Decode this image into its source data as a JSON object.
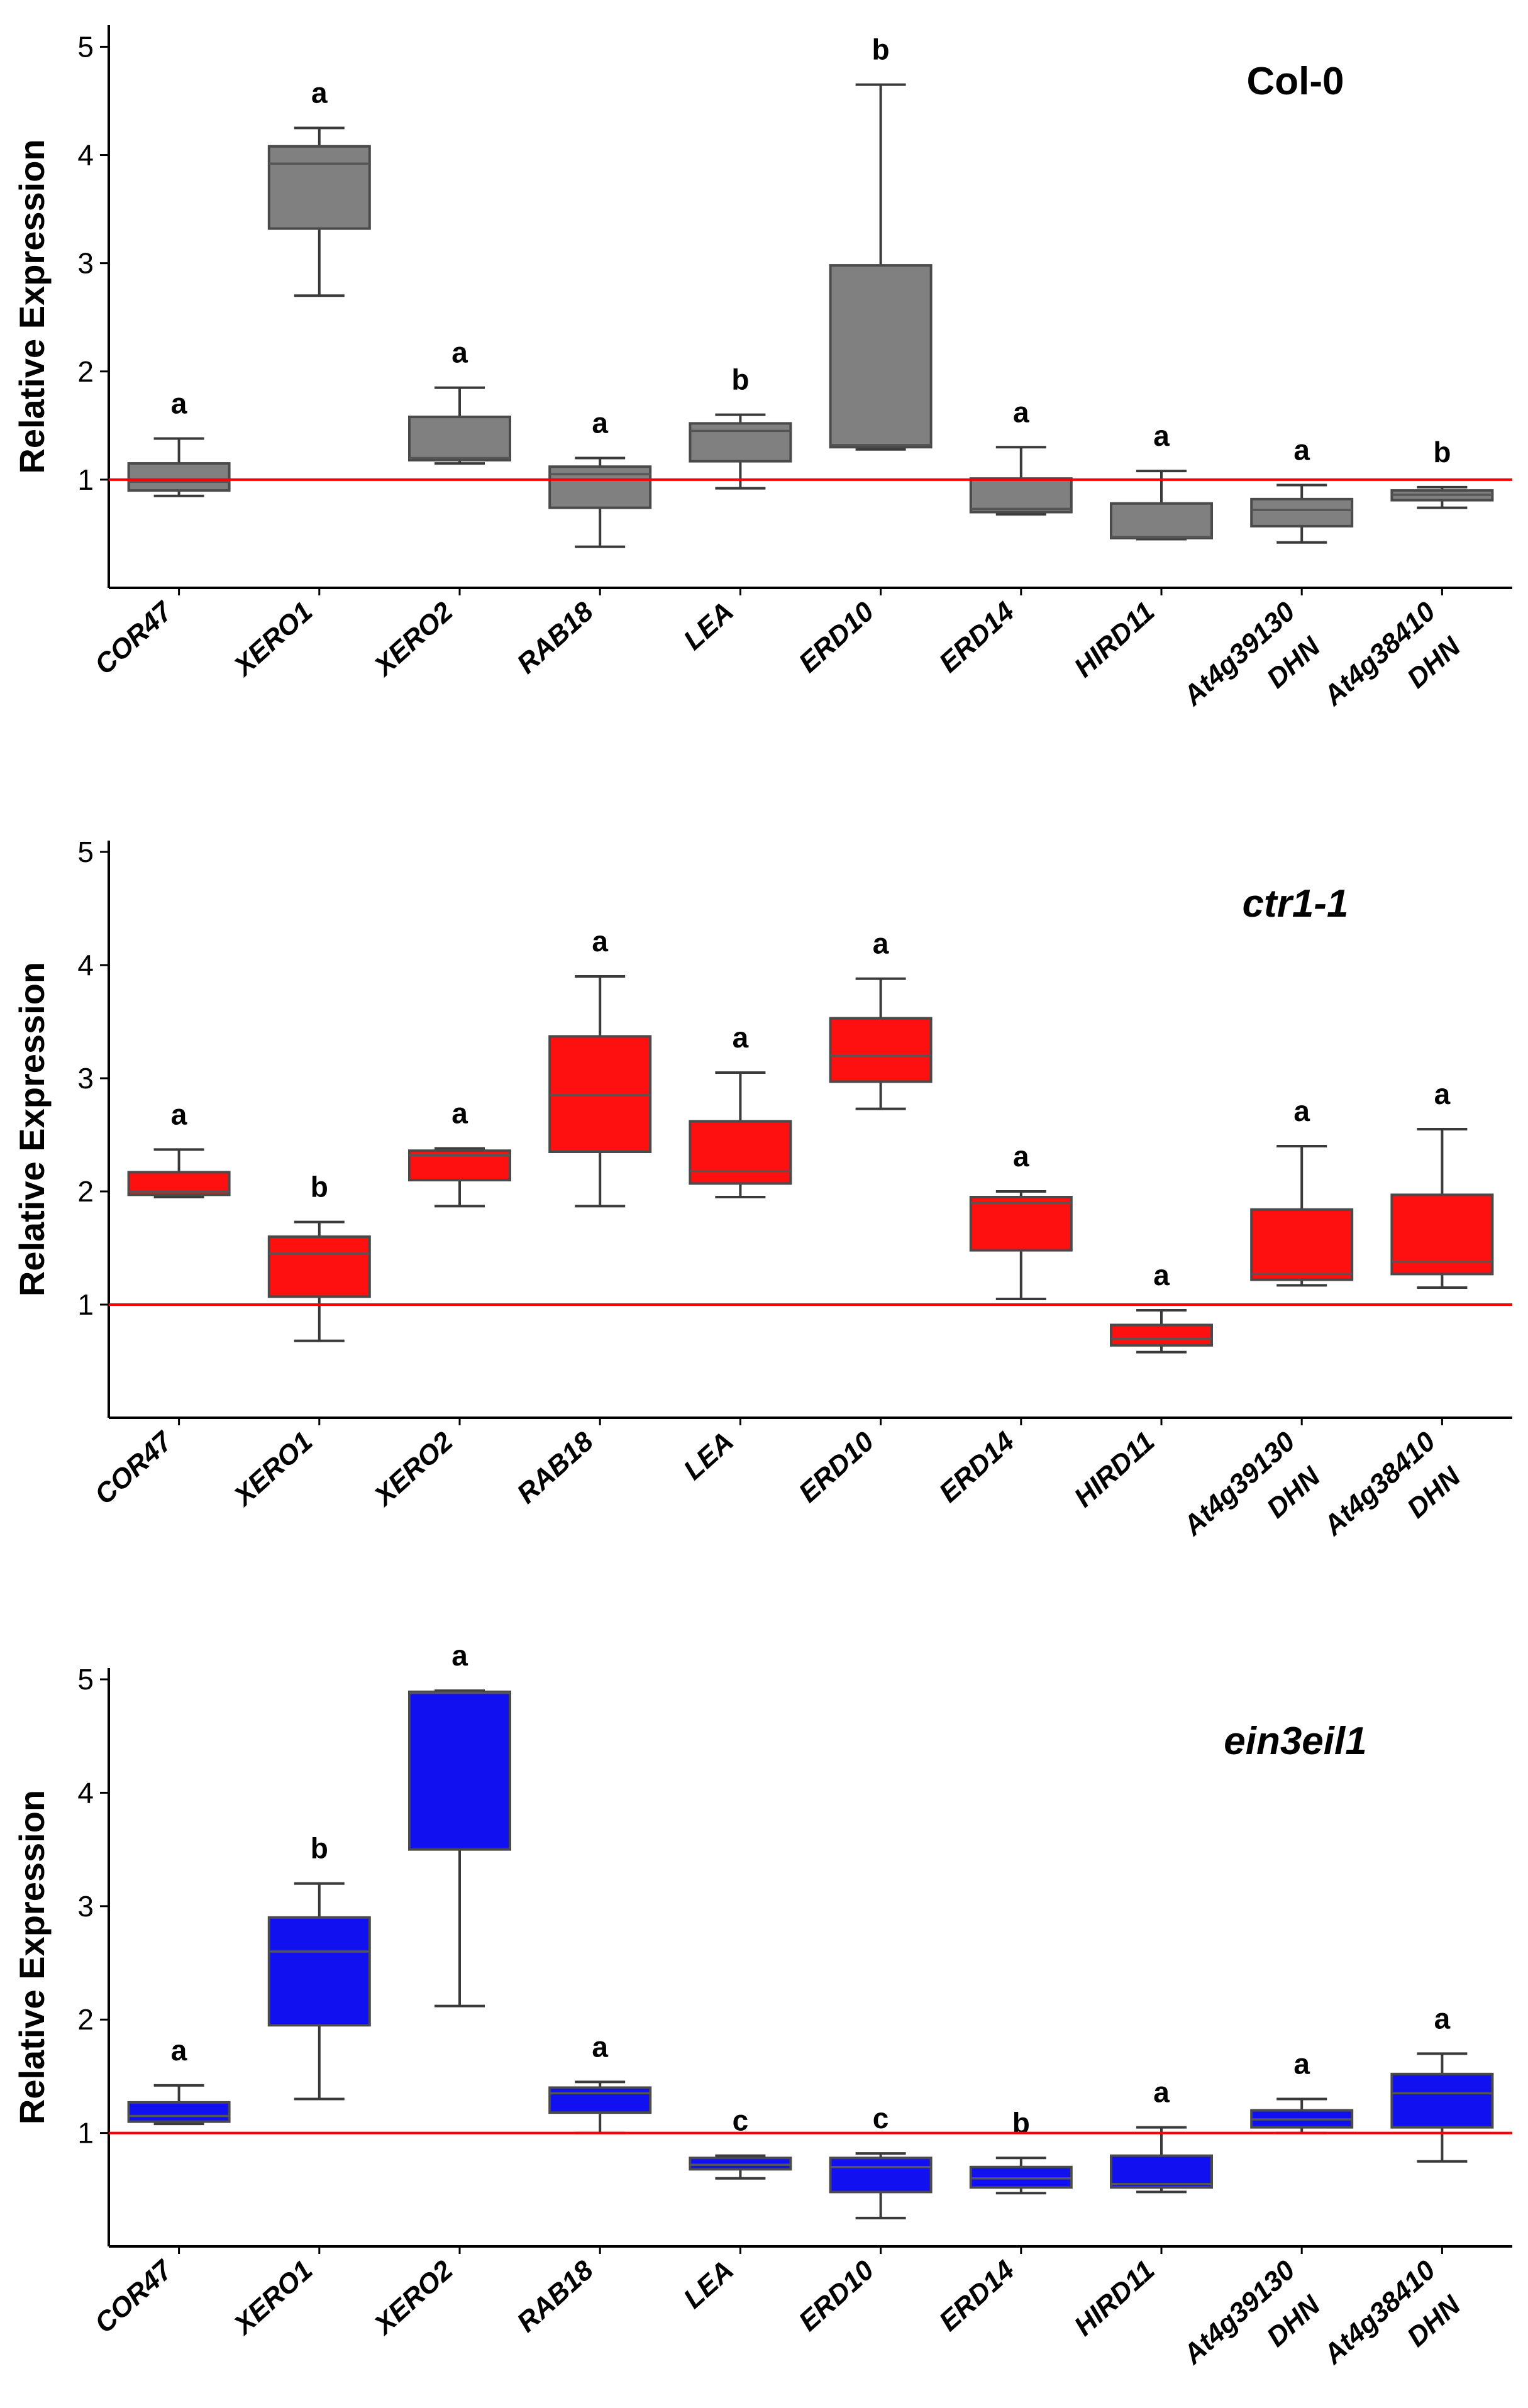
{
  "chart_data": [
    {
      "type": "box",
      "title": "Col-0",
      "title_italic": false,
      "ylabel": "Relative Expression",
      "ylim": [
        0,
        5.2
      ],
      "yticks": [
        1,
        2,
        3,
        4,
        5
      ],
      "reference_line": 1,
      "box_color": "#808080",
      "reference_color": "#ff0000",
      "categories": [
        [
          "COR47"
        ],
        [
          "XERO1"
        ],
        [
          "XERO2"
        ],
        [
          "RAB18"
        ],
        [
          "LEA"
        ],
        [
          "ERD10"
        ],
        [
          "ERD14"
        ],
        [
          "HIRD11"
        ],
        [
          "At4g39130",
          "DHN"
        ],
        [
          "At4g38410",
          "DHN"
        ]
      ],
      "boxes": [
        {
          "min": 0.85,
          "q1": 0.9,
          "median": 0.98,
          "q3": 1.15,
          "max": 1.38
        },
        {
          "min": 2.7,
          "q1": 3.32,
          "median": 3.92,
          "q3": 4.08,
          "max": 4.25
        },
        {
          "min": 1.15,
          "q1": 1.18,
          "median": 1.2,
          "q3": 1.58,
          "max": 1.85
        },
        {
          "min": 0.38,
          "q1": 0.74,
          "median": 1.05,
          "q3": 1.12,
          "max": 1.2
        },
        {
          "min": 0.92,
          "q1": 1.17,
          "median": 1.45,
          "q3": 1.52,
          "max": 1.6
        },
        {
          "min": 1.28,
          "q1": 1.3,
          "median": 1.32,
          "q3": 2.98,
          "max": 4.65
        },
        {
          "min": 0.68,
          "q1": 0.7,
          "median": 0.73,
          "q3": 1.01,
          "max": 1.3
        },
        {
          "min": 0.45,
          "q1": 0.46,
          "median": 0.47,
          "q3": 0.78,
          "max": 1.08
        },
        {
          "min": 0.42,
          "q1": 0.57,
          "median": 0.72,
          "q3": 0.82,
          "max": 0.95
        },
        {
          "min": 0.74,
          "q1": 0.81,
          "median": 0.86,
          "q3": 0.9,
          "max": 0.93
        }
      ],
      "letters": [
        "a",
        "a",
        "a",
        "a",
        "b",
        "b",
        "a",
        "a",
        "a",
        "b"
      ]
    },
    {
      "type": "box",
      "title": "ctr1-1",
      "title_italic": true,
      "ylabel": "Relative Expression",
      "ylim": [
        0,
        5.1
      ],
      "yticks": [
        1,
        2,
        3,
        4,
        5
      ],
      "reference_line": 1,
      "box_color": "#ff1010",
      "reference_color": "#ff0000",
      "categories": [
        [
          "COR47"
        ],
        [
          "XERO1"
        ],
        [
          "XERO2"
        ],
        [
          "RAB18"
        ],
        [
          "LEA"
        ],
        [
          "ERD10"
        ],
        [
          "ERD14"
        ],
        [
          "HIRD11"
        ],
        [
          "At4g39130",
          "DHN"
        ],
        [
          "At4g38410",
          "DHN"
        ]
      ],
      "boxes": [
        {
          "min": 1.95,
          "q1": 1.97,
          "median": 2.0,
          "q3": 2.17,
          "max": 2.37
        },
        {
          "min": 0.68,
          "q1": 1.07,
          "median": 1.45,
          "q3": 1.6,
          "max": 1.73
        },
        {
          "min": 1.87,
          "q1": 2.1,
          "median": 2.32,
          "q3": 2.36,
          "max": 2.38
        },
        {
          "min": 1.87,
          "q1": 2.35,
          "median": 2.85,
          "q3": 3.37,
          "max": 3.9
        },
        {
          "min": 1.95,
          "q1": 2.07,
          "median": 2.18,
          "q3": 2.62,
          "max": 3.05
        },
        {
          "min": 2.73,
          "q1": 2.97,
          "median": 3.2,
          "q3": 3.53,
          "max": 3.88
        },
        {
          "min": 1.05,
          "q1": 1.48,
          "median": 1.9,
          "q3": 1.95,
          "max": 2.0
        },
        {
          "min": 0.58,
          "q1": 0.64,
          "median": 0.7,
          "q3": 0.82,
          "max": 0.95
        },
        {
          "min": 1.17,
          "q1": 1.22,
          "median": 1.27,
          "q3": 1.84,
          "max": 2.4
        },
        {
          "min": 1.15,
          "q1": 1.27,
          "median": 1.38,
          "q3": 1.97,
          "max": 2.55
        }
      ],
      "letters": [
        "a",
        "b",
        "a",
        "a",
        "a",
        "a",
        "a",
        "a",
        "a",
        "a"
      ]
    },
    {
      "type": "box",
      "title": "ein3eil1",
      "title_italic": true,
      "ylabel": "Relative Expression",
      "ylim": [
        0,
        5.1
      ],
      "yticks": [
        1,
        2,
        3,
        4,
        5
      ],
      "reference_line": 1,
      "box_color": "#1010f0",
      "reference_color": "#ff0000",
      "categories": [
        [
          "COR47"
        ],
        [
          "XERO1"
        ],
        [
          "XERO2"
        ],
        [
          "RAB18"
        ],
        [
          "LEA"
        ],
        [
          "ERD10"
        ],
        [
          "ERD14"
        ],
        [
          "HIRD11"
        ],
        [
          "At4g39130",
          "DHN"
        ],
        [
          "At4g38410",
          "DHN"
        ]
      ],
      "boxes": [
        {
          "min": 1.08,
          "q1": 1.1,
          "median": 1.15,
          "q3": 1.27,
          "max": 1.42
        },
        {
          "min": 1.3,
          "q1": 1.95,
          "median": 2.6,
          "q3": 2.9,
          "max": 3.2
        },
        {
          "min": 2.12,
          "q1": 3.5,
          "median": 4.88,
          "q3": 4.89,
          "max": 4.9
        },
        {
          "min": 1.0,
          "q1": 1.18,
          "median": 1.35,
          "q3": 1.4,
          "max": 1.45
        },
        {
          "min": 0.6,
          "q1": 0.68,
          "median": 0.72,
          "q3": 0.78,
          "max": 0.8
        },
        {
          "min": 0.25,
          "q1": 0.48,
          "median": 0.7,
          "q3": 0.78,
          "max": 0.82
        },
        {
          "min": 0.47,
          "q1": 0.52,
          "median": 0.6,
          "q3": 0.7,
          "max": 0.78
        },
        {
          "min": 0.48,
          "q1": 0.52,
          "median": 0.55,
          "q3": 0.8,
          "max": 1.05
        },
        {
          "min": 1.0,
          "q1": 1.05,
          "median": 1.12,
          "q3": 1.2,
          "max": 1.3
        },
        {
          "min": 0.75,
          "q1": 1.05,
          "median": 1.35,
          "q3": 1.52,
          "max": 1.7
        }
      ],
      "letters": [
        "a",
        "b",
        "a",
        "a",
        "c",
        "c",
        "b",
        "a",
        "a",
        "a"
      ]
    }
  ]
}
